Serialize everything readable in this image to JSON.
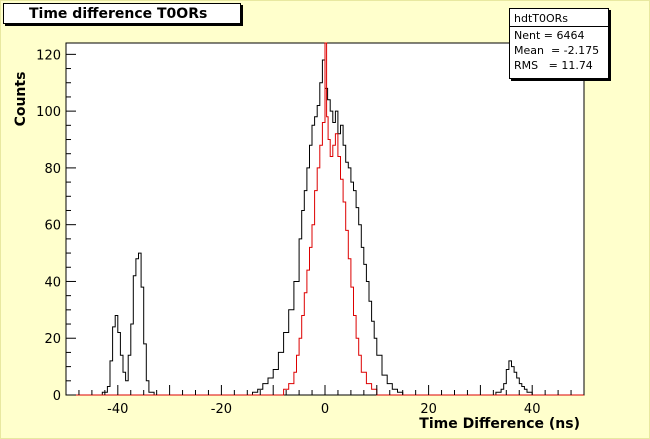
{
  "title": "Time difference T0ORs",
  "stats": {
    "name": "hdtT0ORs",
    "lines": [
      "Nent = 6464",
      "Mean  = -2.175",
      "RMS   = 11.74"
    ]
  },
  "colors": {
    "background": "#ffffcc",
    "frame": "#ffffff",
    "series_black": "#000000",
    "series_red": "#dd0000"
  },
  "chart_data": {
    "type": "line",
    "title": "Time difference T0ORs",
    "xlabel": "Time Difference (ns)",
    "ylabel": "Counts",
    "xlim": [
      -50,
      50
    ],
    "ylim": [
      0,
      124
    ],
    "x_ticks": [
      -40,
      -20,
      0,
      20,
      40
    ],
    "y_ticks": [
      0,
      20,
      40,
      60,
      80,
      100,
      120
    ],
    "grid": false,
    "series": [
      {
        "color": "#000000",
        "x": [
          -50,
          -45,
          -43,
          -42,
          -41.5,
          -41,
          -40.5,
          -40,
          -39.5,
          -39,
          -38.5,
          -38,
          -37.5,
          -37,
          -36.5,
          -36,
          -35.5,
          -35,
          -34.5,
          -34,
          -33,
          -30,
          -25,
          -15,
          -14,
          -13,
          -12,
          -11,
          -10,
          -9,
          -8,
          -7,
          -6,
          -5,
          -4.5,
          -4,
          -3.5,
          -3,
          -2.5,
          -2,
          -1.5,
          -1,
          -0.5,
          0,
          0.5,
          1,
          1.5,
          2,
          2.5,
          3,
          3.5,
          4,
          4.5,
          5,
          5.5,
          6,
          6.5,
          7,
          7.5,
          8,
          8.5,
          9,
          9.5,
          10,
          11,
          12,
          13,
          14,
          15,
          20,
          30,
          33,
          34,
          34.5,
          35,
          35.5,
          36,
          36.5,
          37,
          37.5,
          38,
          38.5,
          39,
          40,
          45,
          50
        ],
        "y": [
          0,
          0,
          1,
          3,
          12,
          24,
          28,
          22,
          14,
          8,
          5,
          14,
          25,
          42,
          48,
          50,
          38,
          18,
          5,
          1,
          0,
          0,
          0,
          0,
          1,
          2,
          4,
          6,
          9,
          15,
          22,
          30,
          40,
          55,
          65,
          72,
          80,
          88,
          95,
          98,
          102,
          110,
          118,
          108,
          104,
          100,
          96,
          100,
          92,
          95,
          88,
          82,
          80,
          75,
          72,
          66,
          60,
          52,
          46,
          40,
          33,
          26,
          20,
          14,
          7,
          4,
          2,
          1,
          0,
          0,
          0,
          1,
          2,
          4,
          9,
          12,
          10,
          8,
          6,
          4,
          3,
          2,
          1,
          0,
          0,
          0
        ]
      },
      {
        "color": "#dd0000",
        "x": [
          -50,
          -10,
          -8,
          -7,
          -6,
          -5.5,
          -5,
          -4.5,
          -4,
          -3.5,
          -3,
          -2.5,
          -2,
          -1.5,
          -1,
          -0.5,
          0,
          0.3,
          0.6,
          1,
          1.5,
          2,
          2.5,
          3,
          3.5,
          4,
          4.5,
          5,
          5.5,
          6,
          6.5,
          7,
          8,
          9,
          10,
          50
        ],
        "y": [
          0,
          0,
          2,
          4,
          8,
          14,
          20,
          28,
          36,
          44,
          52,
          60,
          72,
          80,
          88,
          96,
          124,
          98,
          90,
          84,
          88,
          92,
          84,
          76,
          68,
          58,
          48,
          38,
          28,
          20,
          14,
          8,
          4,
          2,
          0,
          0
        ]
      }
    ]
  },
  "stats_visible": true
}
